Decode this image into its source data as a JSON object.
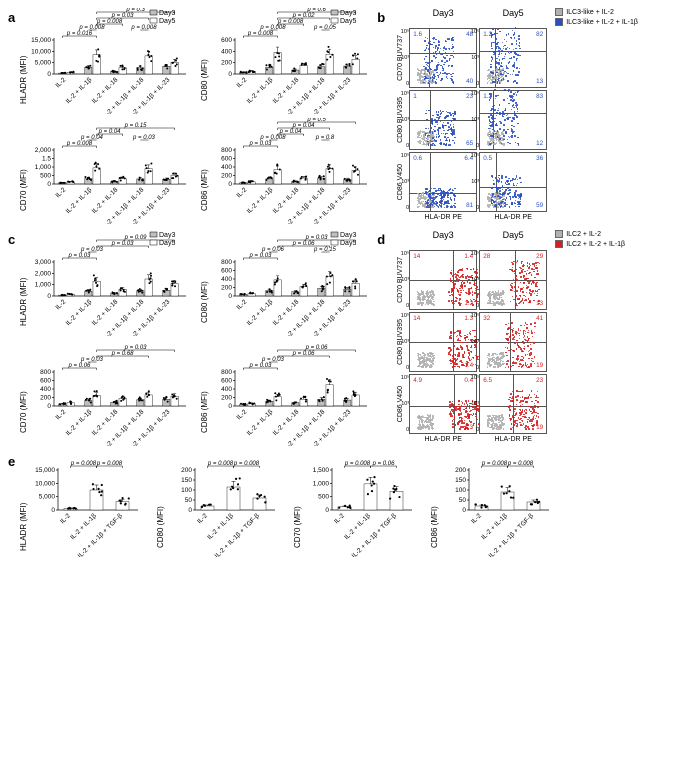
{
  "labels": {
    "a": "a",
    "b": "b",
    "c": "c",
    "d": "d",
    "e": "e",
    "day3": "Day3",
    "day5": "Day5",
    "hlaDr": "HLADR (MFI)",
    "cd80": "CD80 (MFI)",
    "cd70": "CD70 (MFI)",
    "cd86": "CD86 (MFI)",
    "hlaDrPE": "HLA-DR PE",
    "cd70b": "CD70 BUV737",
    "cd80b": "CD80 BUV395",
    "cd86b": "CD86 V450",
    "flowB_leg1": "ILC3-like + IL-2",
    "flowB_leg2": "ILC3-like + IL-2 + IL-1β",
    "flowD_leg1": "ILC2 + IL-2",
    "flowD_leg2": "ILC2 + IL-2 + IL-1β"
  },
  "colors": {
    "day3Fill": "#bfbfbf",
    "day5Fill": "#ffffff",
    "stroke": "#000000",
    "flowGray": "#b1b1b1",
    "flowBlue": "#2b4fc1",
    "flowRed": "#d62020"
  },
  "conditions5": [
    "IL-2",
    "IL-2 + IL-1β",
    "IL-2 + IL-18",
    "IL-2 + IL-1β + IL-18",
    "IL-2 + IL-1β + IL-23"
  ],
  "conditions3": [
    "IL-2",
    "IL-2 + IL-1β",
    "IL-2 + IL-1β + TGF-β"
  ],
  "panelA": {
    "charts": [
      {
        "ylab": "HLADR (MFI)",
        "ymax": 15000,
        "ytick": 5000,
        "d3": [
          400,
          3000,
          1200,
          2800,
          3400
        ],
        "d5": [
          800,
          8500,
          2800,
          8000,
          5200
        ],
        "pvals": [
          {
            "t": "p = 0.016",
            "a": 0,
            "b": 1,
            "lvl": 0,
            "pair": true
          },
          {
            "t": "p = 0.008",
            "a": 1,
            "b": 1,
            "lvl": 1,
            "pair": false
          },
          {
            "t": "p = 0.008",
            "a": 3,
            "b": 3,
            "lvl": 1,
            "pair": false
          },
          {
            "t": "p = 0.008",
            "a": 1,
            "b": 2,
            "lvl": 2,
            "pair": false
          },
          {
            "t": "p = 0.03",
            "a": 1,
            "b": 3,
            "lvl": 3,
            "pair": false
          },
          {
            "t": "p = 0.3",
            "a": 1,
            "b": 4,
            "lvl": 4,
            "pair": false
          }
        ]
      },
      {
        "ylab": "CD80 (MFI)",
        "ymax": 600,
        "ytick": 200,
        "d3": [
          30,
          120,
          70,
          130,
          140
        ],
        "d5": [
          50,
          380,
          150,
          350,
          260
        ],
        "pvals": [
          {
            "t": "p = 0.008",
            "a": 0,
            "b": 1,
            "lvl": 0,
            "pair": true
          },
          {
            "t": "p = 0.008",
            "a": 1,
            "b": 1,
            "lvl": 1,
            "pair": false
          },
          {
            "t": "p = 0.05",
            "a": 3,
            "b": 3,
            "lvl": 1,
            "pair": false
          },
          {
            "t": "p = 0.008",
            "a": 1,
            "b": 2,
            "lvl": 2,
            "pair": false
          },
          {
            "t": "p = 0.02",
            "a": 1,
            "b": 3,
            "lvl": 3,
            "pair": false
          },
          {
            "t": "p = 0.6",
            "a": 1,
            "b": 4,
            "lvl": 4,
            "pair": false
          }
        ]
      },
      {
        "ylab": "CD70 (MFI)",
        "ymax": 2000,
        "ytick": 500,
        "d3": [
          80,
          320,
          150,
          300,
          280
        ],
        "d5": [
          120,
          950,
          320,
          900,
          520
        ],
        "pvals": [
          {
            "t": "p = 0.008",
            "a": 0,
            "b": 1,
            "lvl": 0,
            "pair": true
          },
          {
            "t": "p = 0.04",
            "a": 1,
            "b": 1,
            "lvl": 1,
            "pair": false
          },
          {
            "t": "p = 0.03",
            "a": 3,
            "b": 3,
            "lvl": 1,
            "pair": false
          },
          {
            "t": "p = 0.04",
            "a": 1,
            "b": 2,
            "lvl": 2,
            "pair": false
          },
          {
            "t": "p = 0.15",
            "a": 1,
            "b": 4,
            "lvl": 3,
            "pair": false
          }
        ]
      },
      {
        "ylab": "CD86 (MFI)",
        "ymax": 800,
        "ytick": 200,
        "d3": [
          30,
          120,
          60,
          140,
          110
        ],
        "d5": [
          50,
          340,
          140,
          360,
          320
        ],
        "pvals": [
          {
            "t": "p = 0.03",
            "a": 0,
            "b": 1,
            "lvl": 0,
            "pair": true
          },
          {
            "t": "p = 0.008",
            "a": 1,
            "b": 1,
            "lvl": 1,
            "pair": false
          },
          {
            "t": "p = 0.8",
            "a": 3,
            "b": 3,
            "lvl": 1,
            "pair": false
          },
          {
            "t": "p = 0.04",
            "a": 1,
            "b": 2,
            "lvl": 2,
            "pair": false
          },
          {
            "t": "p = 0.04",
            "a": 1,
            "b": 3,
            "lvl": 3,
            "pair": false
          },
          {
            "t": "p = 0.5",
            "a": 1,
            "b": 4,
            "lvl": 4,
            "pair": false
          }
        ]
      }
    ]
  },
  "panelC": {
    "charts": [
      {
        "ylab": "HLADR (MFI)",
        "ymax": 3000,
        "ytick": 1000,
        "d3": [
          80,
          420,
          250,
          480,
          500
        ],
        "d5": [
          150,
          1300,
          600,
          1500,
          1100
        ],
        "pvals": [
          {
            "t": "p = 0.03",
            "a": 0,
            "b": 1,
            "lvl": 0,
            "pair": true
          },
          {
            "t": "p = 0.03",
            "a": 1,
            "b": 1,
            "lvl": 1,
            "pair": false
          },
          {
            "t": "p = 0.03",
            "a": 1,
            "b": 3,
            "lvl": 2,
            "pair": false
          },
          {
            "t": "p = 0.09",
            "a": 1,
            "b": 4,
            "lvl": 3,
            "pair": false
          }
        ]
      },
      {
        "ylab": "CD80 (MFI)",
        "ymax": 800,
        "ytick": 200,
        "d3": [
          40,
          130,
          100,
          180,
          160
        ],
        "d5": [
          60,
          380,
          220,
          460,
          300
        ],
        "pvals": [
          {
            "t": "p = 0.03",
            "a": 0,
            "b": 1,
            "lvl": 0,
            "pair": true
          },
          {
            "t": "p = 0.06",
            "a": 1,
            "b": 1,
            "lvl": 1,
            "pair": false
          },
          {
            "t": "p = 0.15",
            "a": 3,
            "b": 3,
            "lvl": 1,
            "pair": false
          },
          {
            "t": "p = 0.06",
            "a": 1,
            "b": 3,
            "lvl": 2,
            "pair": false
          },
          {
            "t": "p = 0.03",
            "a": 1,
            "b": 4,
            "lvl": 3,
            "pair": false
          }
        ]
      },
      {
        "ylab": "CD70 (MFI)",
        "ymax": 800,
        "ytick": 200,
        "d3": [
          50,
          130,
          90,
          150,
          160
        ],
        "d5": [
          80,
          250,
          180,
          260,
          230
        ],
        "pvals": [
          {
            "t": "p = 0.06",
            "a": 0,
            "b": 1,
            "lvl": 0,
            "pair": true
          },
          {
            "t": "p = 0.03",
            "a": 1,
            "b": 1,
            "lvl": 1,
            "pair": false
          },
          {
            "t": "p = 0.68",
            "a": 1,
            "b": 3,
            "lvl": 2,
            "pair": false
          },
          {
            "t": "p = 0.03",
            "a": 1,
            "b": 4,
            "lvl": 3,
            "pair": false
          }
        ]
      },
      {
        "ylab": "CD86 (MFI)",
        "ymax": 800,
        "ytick": 200,
        "d3": [
          40,
          110,
          80,
          160,
          140
        ],
        "d5": [
          60,
          220,
          160,
          500,
          260
        ],
        "pvals": [
          {
            "t": "p = 0.03",
            "a": 0,
            "b": 1,
            "lvl": 0,
            "pair": true
          },
          {
            "t": "p = 0.03",
            "a": 1,
            "b": 1,
            "lvl": 1,
            "pair": false
          },
          {
            "t": "p = 0.06",
            "a": 1,
            "b": 3,
            "lvl": 2,
            "pair": false
          },
          {
            "t": "p = 0.06",
            "a": 1,
            "b": 4,
            "lvl": 3,
            "pair": false
          }
        ]
      }
    ]
  },
  "panelE": {
    "charts": [
      {
        "ylab": "HLADR (MFI)",
        "ymax": 15000,
        "ytick": 5000,
        "vals": [
          600,
          7500,
          3200
        ],
        "pvals": [
          {
            "t": "p = 0.008",
            "a": 0,
            "b": 1
          },
          {
            "t": "p = 0.008",
            "a": 1,
            "b": 2
          }
        ]
      },
      {
        "ylab": "CD80 (MFI)",
        "ymax": 200,
        "ytick": 50,
        "vals": [
          20,
          115,
          60
        ],
        "pvals": [
          {
            "t": "p = 0.008",
            "a": 0,
            "b": 1
          },
          {
            "t": "p = 0.008",
            "a": 1,
            "b": 2
          }
        ]
      },
      {
        "ylab": "CD70 (MFI)",
        "ymax": 1500,
        "ytick": 500,
        "vals": [
          120,
          980,
          700
        ],
        "pvals": [
          {
            "t": "p = 0.008",
            "a": 0,
            "b": 1
          },
          {
            "t": "p = 0.06",
            "a": 1,
            "b": 2
          }
        ]
      },
      {
        "ylab": "CD86 (MFI)",
        "ymax": 200,
        "ytick": 50,
        "vals": [
          20,
          90,
          40
        ],
        "pvals": [
          {
            "t": "p = 0.008",
            "a": 0,
            "b": 1
          },
          {
            "t": "p = 0.008",
            "a": 1,
            "b": 2
          }
        ]
      }
    ]
  },
  "panelB": {
    "rows": [
      {
        "ylab": "CD70 BUV737",
        "d3": {
          "tl": "1.6",
          "tr": "48",
          "br": "40",
          "qv": 0.28,
          "qh": 0.58
        },
        "d5": {
          "tl": "1.2",
          "tr": "82",
          "br": "13",
          "qv": 0.22,
          "qh": 0.62
        }
      },
      {
        "ylab": "CD80 BUV395",
        "d3": {
          "tl": "1",
          "tr": "23",
          "br": "65",
          "qv": 0.3,
          "qh": 0.5
        },
        "d5": {
          "tl": "1.2",
          "tr": "83",
          "br": "12",
          "qv": 0.2,
          "qh": 0.62
        }
      },
      {
        "ylab": "CD86 V450",
        "d3": {
          "tl": "0.6",
          "tr": "6.4",
          "br": "81",
          "qv": 0.3,
          "qh": 0.3
        },
        "d5": {
          "tl": "0.5",
          "tr": "36",
          "br": "59",
          "qv": 0.24,
          "qh": 0.4
        }
      }
    ]
  },
  "panelD": {
    "rows": [
      {
        "ylab": "CD70 BUV737",
        "d3": {
          "tl": "14",
          "tr": "1.4",
          "br": "1.2",
          "qv": 0.65,
          "qh": 0.5
        },
        "d5": {
          "tl": "28",
          "tr": "29",
          "br": "13",
          "qv": 0.52,
          "qh": 0.5
        }
      },
      {
        "ylab": "CD80 BUV395",
        "d3": {
          "tl": "14",
          "tr": "1.3",
          "br": "1.4",
          "qv": 0.65,
          "qh": 0.5
        },
        "d5": {
          "tl": "32",
          "tr": "41",
          "br": "19",
          "qv": 0.45,
          "qh": 0.5
        }
      },
      {
        "ylab": "CD86 V450",
        "d3": {
          "tl": "4.9",
          "tr": "0.4",
          "br": "2.3",
          "qv": 0.66,
          "qh": 0.45
        },
        "d5": {
          "tl": "6.5",
          "tr": "23",
          "br": "19",
          "qv": 0.5,
          "qh": 0.45
        }
      }
    ]
  }
}
